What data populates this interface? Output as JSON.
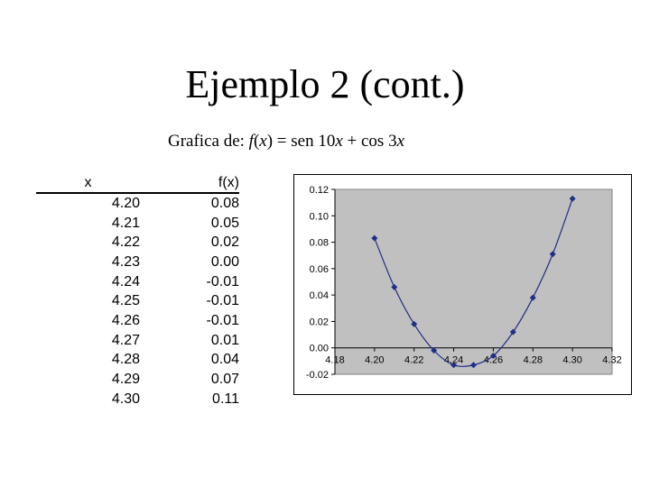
{
  "title": "Ejemplo 2 (cont.)",
  "subtitle": {
    "prefix": "Grafica de: ",
    "f": "f",
    "paren_open": "(",
    "x1": "x",
    "mid": ") = sen 10",
    "x2": "x",
    "plus": " + cos 3",
    "x3": "x"
  },
  "table": {
    "headers": [
      "x",
      "f(x)"
    ],
    "rows": [
      [
        "4.20",
        "0.08"
      ],
      [
        "4.21",
        "0.05"
      ],
      [
        "4.22",
        "0.02"
      ],
      [
        "4.23",
        "0.00"
      ],
      [
        "4.24",
        "-0.01"
      ],
      [
        "4.25",
        "-0.01"
      ],
      [
        "4.26",
        "-0.01"
      ],
      [
        "4.27",
        "0.01"
      ],
      [
        "4.28",
        "0.04"
      ],
      [
        "4.29",
        "0.07"
      ],
      [
        "4.30",
        "0.11"
      ]
    ]
  },
  "chart_data": {
    "type": "scatter",
    "title": "",
    "xlabel": "",
    "ylabel": "",
    "x": [
      4.2,
      4.21,
      4.22,
      4.23,
      4.24,
      4.25,
      4.26,
      4.27,
      4.28,
      4.29,
      4.3
    ],
    "series": [
      {
        "values": [
          0.083,
          0.046,
          0.018,
          -0.002,
          -0.013,
          -0.013,
          -0.006,
          0.012,
          0.038,
          0.071,
          0.113
        ],
        "color": "#1f2f86"
      }
    ],
    "xlim": [
      4.18,
      4.32
    ],
    "ylim": [
      -0.02,
      0.12
    ],
    "xticks": [
      "4.18",
      "4.20",
      "4.22",
      "4.24",
      "4.26",
      "4.28",
      "4.30",
      "4.32"
    ],
    "yticks": [
      "-0.02",
      "0.00",
      "0.02",
      "0.04",
      "0.06",
      "0.08",
      "0.10",
      "0.12"
    ],
    "plot_background": "#c0c0c0",
    "grid": false,
    "legend": "none",
    "line": "smooth"
  }
}
